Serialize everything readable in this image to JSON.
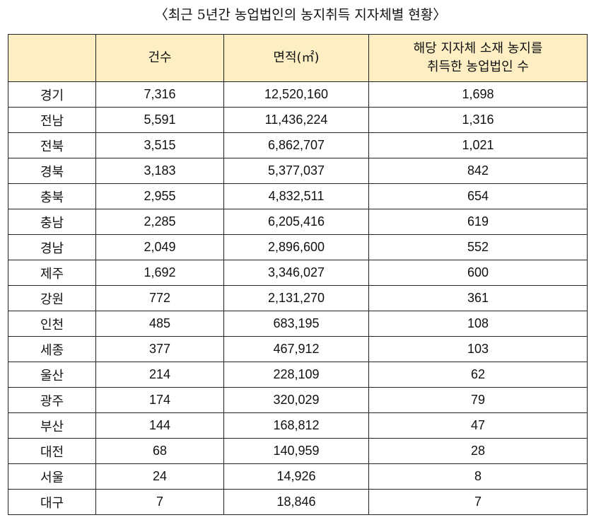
{
  "title": "〈최근 5년간 농업법인의 농지취득 지자체별 현황〉",
  "colors": {
    "header_bg": "#fdefc3",
    "border": "#222222"
  },
  "table": {
    "headers": {
      "region": "",
      "count": "건수",
      "area": "면적(㎡)",
      "corps_line1": "해당 지자체 소재 농지를",
      "corps_line2": "취득한 농업법인 수"
    },
    "rows": [
      {
        "region": "경기",
        "count": "7,316",
        "area": "12,520,160",
        "corps": "1,698"
      },
      {
        "region": "전남",
        "count": "5,591",
        "area": "11,436,224",
        "corps": "1,316"
      },
      {
        "region": "전북",
        "count": "3,515",
        "area": "6,862,707",
        "corps": "1,021"
      },
      {
        "region": "경북",
        "count": "3,183",
        "area": "5,377,037",
        "corps": "842"
      },
      {
        "region": "충북",
        "count": "2,955",
        "area": "4,832,511",
        "corps": "654"
      },
      {
        "region": "충남",
        "count": "2,285",
        "area": "6,205,416",
        "corps": "619"
      },
      {
        "region": "경남",
        "count": "2,049",
        "area": "2,896,600",
        "corps": "552"
      },
      {
        "region": "제주",
        "count": "1,692",
        "area": "3,346,027",
        "corps": "600"
      },
      {
        "region": "강원",
        "count": "772",
        "area": "2,131,270",
        "corps": "361"
      },
      {
        "region": "인천",
        "count": "485",
        "area": "683,195",
        "corps": "108"
      },
      {
        "region": "세종",
        "count": "377",
        "area": "467,912",
        "corps": "103"
      },
      {
        "region": "울산",
        "count": "214",
        "area": "228,109",
        "corps": "62"
      },
      {
        "region": "광주",
        "count": "174",
        "area": "320,029",
        "corps": "79"
      },
      {
        "region": "부산",
        "count": "144",
        "area": "168,812",
        "corps": "47"
      },
      {
        "region": "대전",
        "count": "68",
        "area": "140,959",
        "corps": "28"
      },
      {
        "region": "서울",
        "count": "24",
        "area": "14,926",
        "corps": "8"
      },
      {
        "region": "대구",
        "count": "7",
        "area": "18,846",
        "corps": "7"
      }
    ]
  }
}
